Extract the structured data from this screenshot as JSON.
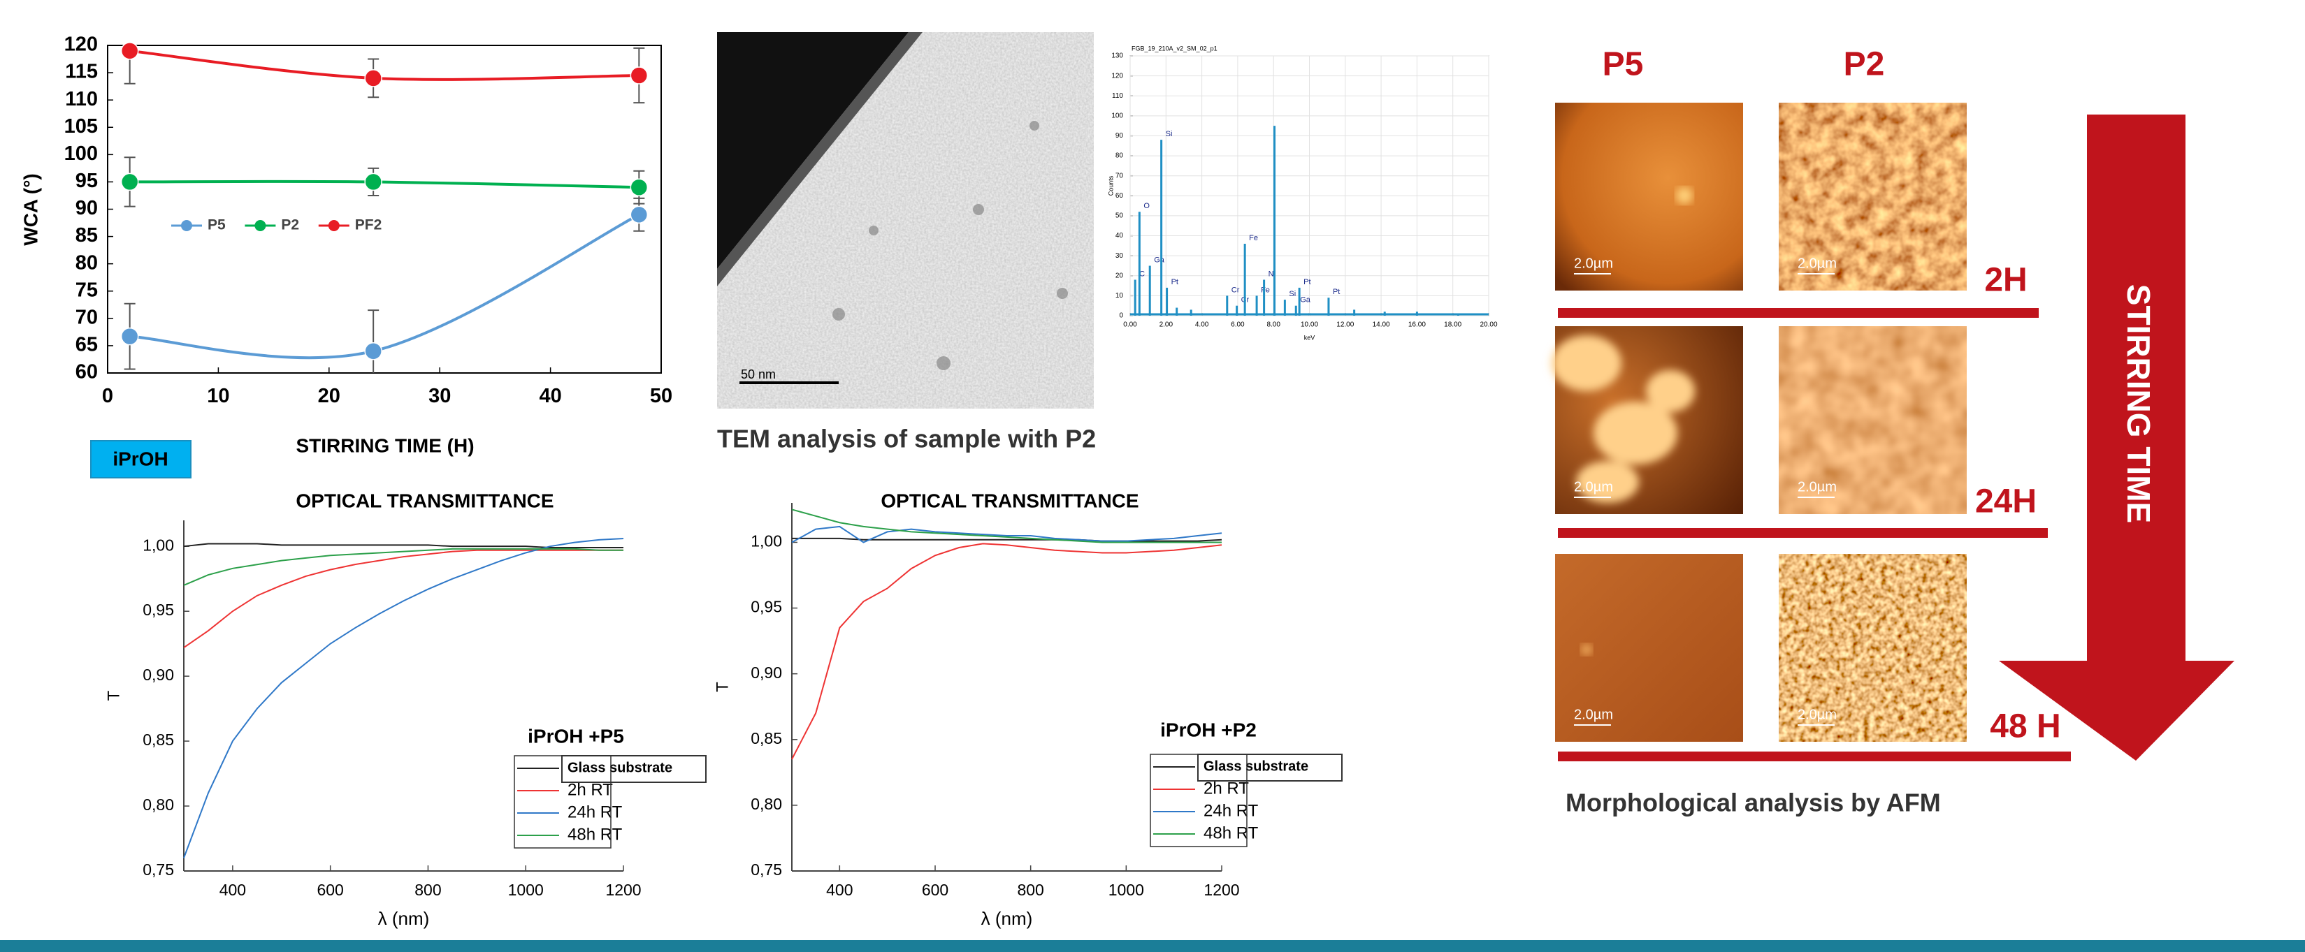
{
  "chart_data": [
    {
      "type": "line",
      "ylabel": "WCA (°)",
      "xlabel": "STIRRING TIME (H)",
      "smooth": true,
      "markers": true,
      "grid": false,
      "legend": "center left",
      "x": [
        2,
        24,
        48
      ],
      "series": [
        {
          "name": "P5",
          "color": "#5b9bd5",
          "values": [
            66.7,
            64,
            89
          ],
          "errors": [
            6,
            7.5,
            3
          ]
        },
        {
          "name": "P2",
          "color": "#00b050",
          "values": [
            95,
            95,
            94
          ],
          "errors": [
            4.5,
            2.5,
            3
          ]
        },
        {
          "name": "PF2",
          "color": "#e81c24",
          "values": [
            119,
            114,
            114.5
          ],
          "errors": [
            6,
            3.5,
            5
          ]
        }
      ],
      "xlim": [
        0,
        50
      ],
      "xticks": [
        0,
        10,
        20,
        30,
        40,
        50
      ],
      "ylim": [
        60,
        120
      ],
      "yticks": [
        60,
        65,
        70,
        75,
        80,
        85,
        90,
        95,
        100,
        105,
        110,
        115,
        120
      ]
    },
    {
      "type": "line",
      "title": "OPTICAL TRANSMITTANCE",
      "annotation": "iPrOH +P5",
      "ylabel": "T",
      "xlabel": "λ (nm)",
      "smooth": false,
      "markers": false,
      "grid": false,
      "legend": "lower right",
      "x": [
        300,
        350,
        400,
        450,
        500,
        550,
        600,
        650,
        700,
        750,
        800,
        850,
        900,
        950,
        1000,
        1050,
        1100,
        1150,
        1200
      ],
      "series": [
        {
          "name": "Glass substrate",
          "color": "#222222",
          "values": [
            1.0,
            1.002,
            1.002,
            1.002,
            1.001,
            1.001,
            1.001,
            1.001,
            1.001,
            1.001,
            1.001,
            1.0,
            1.0,
            1.0,
            1.0,
            0.999,
            0.999,
            0.999,
            0.999
          ]
        },
        {
          "name": "2h RT",
          "color": "#ee3333",
          "values": [
            0.922,
            0.935,
            0.95,
            0.962,
            0.97,
            0.977,
            0.982,
            0.986,
            0.989,
            0.992,
            0.994,
            0.996,
            0.997,
            0.997,
            0.997,
            0.997,
            0.997,
            0.997,
            0.997
          ]
        },
        {
          "name": "24h RT",
          "color": "#2f78c8",
          "values": [
            0.76,
            0.81,
            0.85,
            0.875,
            0.895,
            0.91,
            0.925,
            0.937,
            0.948,
            0.958,
            0.967,
            0.975,
            0.982,
            0.989,
            0.995,
            1.0,
            1.003,
            1.005,
            1.006
          ]
        },
        {
          "name": "48h RT",
          "color": "#2ca04a",
          "values": [
            0.97,
            0.978,
            0.983,
            0.986,
            0.989,
            0.991,
            0.993,
            0.994,
            0.995,
            0.996,
            0.997,
            0.998,
            0.998,
            0.998,
            0.998,
            0.998,
            0.998,
            0.997,
            0.997
          ]
        }
      ],
      "xlim": [
        300,
        1200
      ],
      "xticks": [
        400,
        600,
        800,
        1000,
        1200
      ],
      "ylim": [
        0.75,
        1.02
      ],
      "yticks": [
        {
          "value": 0.75,
          "label": "0,75"
        },
        {
          "value": 0.8,
          "label": "0,80"
        },
        {
          "value": 0.85,
          "label": "0,85"
        },
        {
          "value": 0.9,
          "label": "0,90"
        },
        {
          "value": 0.95,
          "label": "0,95"
        },
        {
          "value": 1.0,
          "label": "1,00"
        }
      ]
    },
    {
      "type": "line",
      "title": "OPTICAL TRANSMITTANCE",
      "annotation": "iPrOH +P2",
      "ylabel": "T",
      "xlabel": "λ (nm)",
      "smooth": false,
      "markers": false,
      "grid": false,
      "legend": "lower right",
      "x": [
        300,
        350,
        400,
        450,
        500,
        550,
        600,
        650,
        700,
        750,
        800,
        850,
        900,
        950,
        1000,
        1050,
        1100,
        1150,
        1200
      ],
      "series": [
        {
          "name": "Glass substrate",
          "color": "#222222",
          "values": [
            1.003,
            1.003,
            1.003,
            1.002,
            1.002,
            1.002,
            1.002,
            1.002,
            1.002,
            1.002,
            1.002,
            1.002,
            1.002,
            1.001,
            1.001,
            1.001,
            1.001,
            1.001,
            1.002
          ]
        },
        {
          "name": "2h RT",
          "color": "#ee3333",
          "values": [
            0.835,
            0.87,
            0.935,
            0.955,
            0.965,
            0.98,
            0.99,
            0.996,
            0.999,
            0.998,
            0.996,
            0.994,
            0.993,
            0.992,
            0.992,
            0.993,
            0.994,
            0.996,
            0.998
          ]
        },
        {
          "name": "24h RT",
          "color": "#2f78c8",
          "values": [
            1.0,
            1.01,
            1.012,
            1.0,
            1.008,
            1.01,
            1.008,
            1.007,
            1.006,
            1.005,
            1.005,
            1.003,
            1.002,
            1.001,
            1.001,
            1.002,
            1.003,
            1.005,
            1.007
          ]
        },
        {
          "name": "48h RT",
          "color": "#2ca04a",
          "values": [
            1.025,
            1.02,
            1.015,
            1.012,
            1.01,
            1.008,
            1.007,
            1.006,
            1.005,
            1.004,
            1.003,
            1.002,
            1.001,
            1.0,
            1.0,
            1.0,
            1.0,
            1.0,
            1.0
          ]
        }
      ],
      "xlim": [
        300,
        1200
      ],
      "xticks": [
        400,
        600,
        800,
        1000,
        1200
      ],
      "ylim": [
        0.75,
        1.03
      ],
      "yticks": [
        {
          "value": 0.75,
          "label": "0,75"
        },
        {
          "value": 0.8,
          "label": "0,80"
        },
        {
          "value": 0.85,
          "label": "0,85"
        },
        {
          "value": 0.9,
          "label": "0,90"
        },
        {
          "value": 0.95,
          "label": "0,95"
        },
        {
          "value": 1.0,
          "label": "1,00"
        }
      ]
    },
    {
      "type": "spectrum",
      "title": "FGB_19_210A_v2_SM_02_p1",
      "ylabel": "Counts",
      "xlabel": "keV",
      "grid": true,
      "color": "#1f8fc4",
      "x": [
        0.28,
        0.52,
        1.1,
        1.74,
        2.05,
        2.6,
        3.4,
        5.41,
        5.95,
        6.4,
        7.06,
        7.47,
        8.05,
        8.63,
        9.25,
        9.44,
        11.07,
        12.5,
        14.2,
        16.0,
        18.3
      ],
      "values": [
        18,
        52,
        25,
        88,
        14,
        4,
        3,
        10,
        5,
        36,
        10,
        18,
        95,
        8,
        5,
        14,
        9,
        3,
        2,
        2,
        1
      ],
      "peak_labels": [
        "C",
        "O",
        "Ga",
        "Si",
        "Pt",
        null,
        null,
        "Cr",
        "Cr",
        "Fe",
        "Fe",
        "Ni",
        null,
        "Si",
        "Ga",
        "Pt",
        "Pt",
        null,
        null,
        null,
        null
      ],
      "xlim": [
        0,
        20
      ],
      "xticks": [
        {
          "value": 0,
          "label": "0.00"
        },
        {
          "value": 2,
          "label": "2.00"
        },
        {
          "value": 4,
          "label": "4.00"
        },
        {
          "value": 6,
          "label": "6.00"
        },
        {
          "value": 8,
          "label": "8.00"
        },
        {
          "value": 10,
          "label": "10.00"
        },
        {
          "value": 12,
          "label": "12.00"
        },
        {
          "value": 14,
          "label": "14.00"
        },
        {
          "value": 16,
          "label": "16.00"
        },
        {
          "value": 18,
          "label": "18.00"
        },
        {
          "value": 20,
          "label": "20.00"
        }
      ],
      "ylim": [
        0,
        130
      ],
      "yticks": [
        0,
        10,
        20,
        30,
        40,
        50,
        60,
        70,
        80,
        90,
        100,
        110,
        120,
        130
      ]
    }
  ],
  "solvent_label": "iPrOH",
  "tem": {
    "scale_bar": "50 nm",
    "caption": "TEM analysis of sample with P2"
  },
  "afm": {
    "columns": [
      "P5",
      "P2"
    ],
    "rows": [
      "2H",
      "24H",
      "48 H"
    ],
    "scale": "2.0µm",
    "arrow": "STIRRING TIME",
    "caption": "Morphological analysis by AFM"
  }
}
